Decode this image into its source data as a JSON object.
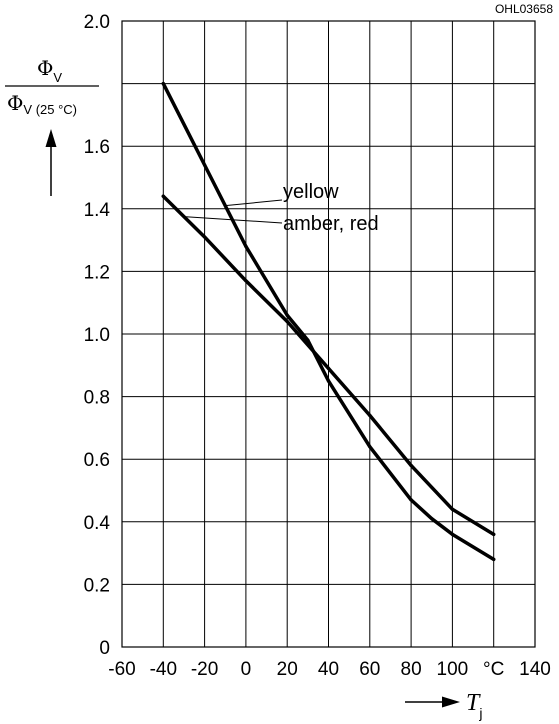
{
  "figure_code": "OHL03658",
  "chart_data": {
    "type": "line",
    "xlim": [
      -60,
      140
    ],
    "ylim": [
      0,
      2.0
    ],
    "x_ticks": [
      -60,
      -40,
      -20,
      0,
      20,
      40,
      60,
      80,
      100,
      140
    ],
    "x_tick_labels": [
      "-60",
      "-40",
      "-20",
      "0",
      "20",
      "40",
      "60",
      "80",
      "100",
      "140"
    ],
    "x_unit_label": "°C",
    "y_ticks": [
      0,
      0.2,
      0.4,
      0.6,
      0.8,
      1.0,
      1.2,
      1.4,
      1.6,
      2.0
    ],
    "y_tick_labels": [
      "0",
      "0.2",
      "0.4",
      "0.6",
      "0.8",
      "1.0",
      "1.2",
      "1.4",
      "1.6",
      "2.0"
    ],
    "grid": true,
    "ylabel": {
      "numerator": "Φ",
      "numerator_sub": "V",
      "denominator": "Φ",
      "denominator_sub": "V (25 °C)"
    },
    "xlabel": {
      "symbol": "T",
      "sub": "j"
    },
    "series": [
      {
        "name": "yellow",
        "x": [
          -40,
          -20,
          0,
          20,
          30,
          40,
          60,
          80,
          90,
          100,
          120
        ],
        "y": [
          1.8,
          1.54,
          1.28,
          1.06,
          0.98,
          0.85,
          0.64,
          0.47,
          0.41,
          0.36,
          0.28
        ]
      },
      {
        "name": "amber, red",
        "x": [
          -40,
          -20,
          0,
          20,
          40,
          60,
          80,
          100,
          120
        ],
        "y": [
          1.44,
          1.31,
          1.17,
          1.04,
          0.89,
          0.74,
          0.58,
          0.44,
          0.36
        ]
      }
    ]
  }
}
